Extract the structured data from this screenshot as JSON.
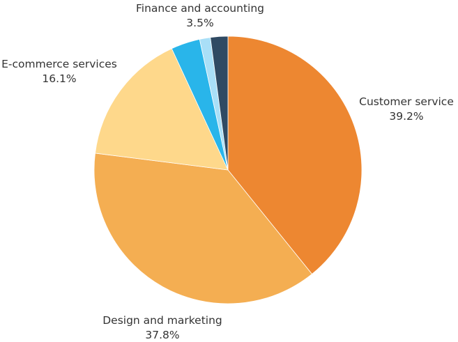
{
  "chart_data": {
    "type": "pie",
    "title": "",
    "start_angle_deg": 0,
    "direction": "clockwise",
    "slices": [
      {
        "name": "Customer service",
        "value": 39.2,
        "label": "39.2%",
        "color": "#ed8731"
      },
      {
        "name": "Design and marketing",
        "value": 37.8,
        "label": "37.8%",
        "color": "#f4ae52"
      },
      {
        "name": "E-commerce services",
        "value": 16.1,
        "label": "16.1%",
        "color": "#fed88b"
      },
      {
        "name": "Finance and accounting",
        "value": 3.5,
        "label": "3.5%",
        "color": "#29b5ea"
      },
      {
        "name": "",
        "value": 1.3,
        "label": "",
        "color": "#a9dff7"
      },
      {
        "name": "",
        "value": 2.1,
        "label": "",
        "color": "#2f4a63"
      }
    ]
  }
}
